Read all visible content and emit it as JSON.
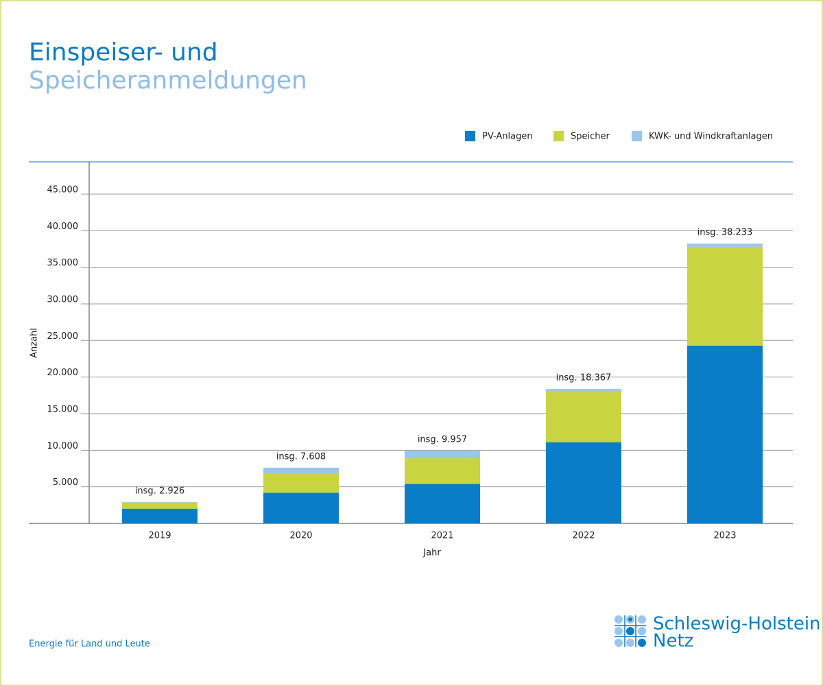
{
  "chart_data": {
    "type": "stacked_bar",
    "title": [
      "Einspeiser- und",
      "Speicheranmeldungen"
    ],
    "categories": [
      "2019",
      "2020",
      "2021",
      "2022",
      "2023"
    ],
    "series": [
      {
        "name": "PV-Anlagen",
        "color": "#0a7dc8",
        "values": [
          2000,
          4200,
          5400,
          11100,
          24300
        ]
      },
      {
        "name": "Speicher",
        "color": "#c8d541",
        "values": [
          850,
          2650,
          3500,
          7000,
          13500
        ]
      },
      {
        "name": "KWK- und Windkraftanlagen",
        "color": "#9cc5eb",
        "values": [
          76,
          758,
          1057,
          267,
          433
        ]
      }
    ],
    "annotations": [
      "insg. 2.926",
      "insg. 7.608",
      "insg. 9.957",
      "insg. 18.367",
      "insg. 38.233"
    ],
    "ylim": [
      0,
      49400
    ],
    "yticks": [
      {
        "value": 5000,
        "label": "5.000"
      },
      {
        "value": 10000,
        "label": "10.000"
      },
      {
        "value": 15000,
        "label": "15.000"
      },
      {
        "value": 20000,
        "label": "20.000"
      },
      {
        "value": 25000,
        "label": "25.000"
      },
      {
        "value": 30000,
        "label": "30.000"
      },
      {
        "value": 35000,
        "label": "35.000"
      },
      {
        "value": 40000,
        "label": "40.000"
      },
      {
        "value": 45000,
        "label": "45.000"
      }
    ],
    "grid": true,
    "xlabel": "Jahr",
    "ylabel": "Anzahl",
    "legend": "top-right"
  },
  "footer": {
    "tagline": "Energie für Land und Leute",
    "logo": [
      "Schleswig-Holstein",
      "Netz"
    ]
  }
}
